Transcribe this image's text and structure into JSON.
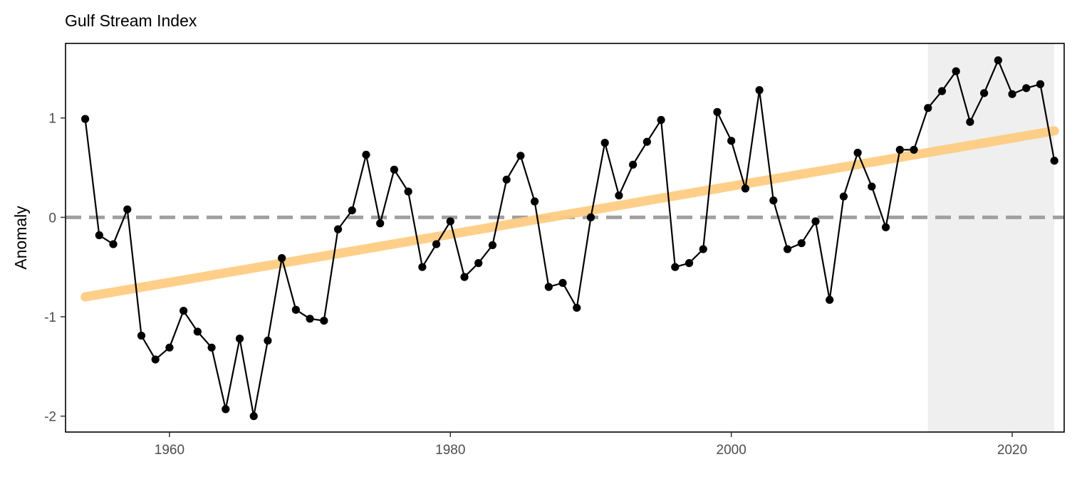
{
  "chart_data": {
    "type": "line",
    "title": "Gulf Stream Index",
    "xlabel": "",
    "ylabel": "Anomaly",
    "xlim": [
      1952.6,
      2023.7
    ],
    "ylim": [
      -2.16,
      1.75
    ],
    "x_ticks": [
      1960,
      1980,
      2000,
      2020
    ],
    "y_ticks": [
      -2,
      -1,
      0,
      1
    ],
    "grid": false,
    "legend": "none",
    "reference_line": {
      "y": 0,
      "style": "dashed",
      "color": "#a0a0a0"
    },
    "highlight_range": {
      "x": [
        2014,
        2023
      ],
      "color": "#efefef"
    },
    "trend": {
      "x": [
        1954,
        2023
      ],
      "y": [
        -0.8,
        0.87
      ],
      "color": "#ffcc80"
    },
    "series": [
      {
        "color": "#000000",
        "x": [
          1954,
          1955,
          1956,
          1957,
          1958,
          1959,
          1960,
          1961,
          1962,
          1963,
          1964,
          1965,
          1966,
          1967,
          1968,
          1969,
          1970,
          1971,
          1972,
          1973,
          1974,
          1975,
          1976,
          1977,
          1978,
          1979,
          1980,
          1981,
          1982,
          1983,
          1984,
          1985,
          1986,
          1987,
          1988,
          1989,
          1990,
          1991,
          1992,
          1993,
          1994,
          1995,
          1996,
          1997,
          1998,
          1999,
          2000,
          2001,
          2002,
          2003,
          2004,
          2005,
          2006,
          2007,
          2008,
          2009,
          2010,
          2011,
          2012,
          2013,
          2014,
          2015,
          2016,
          2017,
          2018,
          2019,
          2020,
          2021,
          2022,
          2023
        ],
        "y": [
          0.99,
          -0.18,
          -0.27,
          0.08,
          -1.19,
          -1.43,
          -1.31,
          -0.94,
          -1.15,
          -1.31,
          -1.93,
          -1.22,
          -2.0,
          -1.24,
          -0.41,
          -0.93,
          -1.02,
          -1.04,
          -0.12,
          0.07,
          0.63,
          -0.06,
          0.48,
          0.26,
          -0.5,
          -0.27,
          -0.04,
          -0.6,
          -0.46,
          -0.28,
          0.38,
          0.62,
          0.16,
          -0.7,
          -0.66,
          -0.91,
          0.0,
          0.75,
          0.22,
          0.53,
          0.76,
          0.98,
          -0.5,
          -0.46,
          -0.32,
          1.06,
          0.77,
          0.29,
          1.28,
          0.17,
          -0.32,
          -0.26,
          -0.04,
          -0.83,
          0.21,
          0.65,
          0.31,
          -0.1,
          0.68,
          0.68,
          1.1,
          1.27,
          1.47,
          0.96,
          1.25,
          1.58,
          1.24,
          1.3,
          1.34,
          0.57
        ]
      }
    ]
  }
}
